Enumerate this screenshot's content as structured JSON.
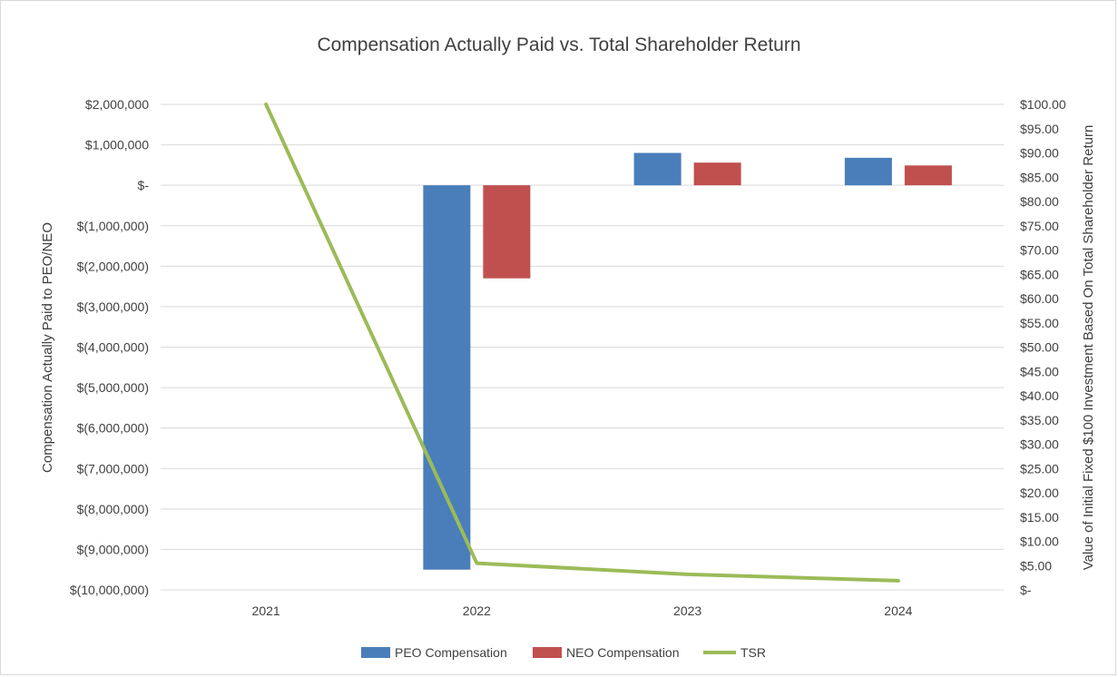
{
  "chart_data": {
    "type": "bar+line",
    "title": "Compensation Actually Paid vs. Total Shareholder Return",
    "categories": [
      "2021",
      "2022",
      "2023",
      "2024"
    ],
    "y_left": {
      "label": "Compensation Actually Paid to PEO/NEO",
      "range": [
        -10000000,
        2000000
      ],
      "ticks": [
        "$2,000,000",
        "$1,000,000",
        "$-",
        "$(1,000,000)",
        "$(2,000,000)",
        "$(3,000,000)",
        "$(4,000,000)",
        "$(5,000,000)",
        "$(6,000,000)",
        "$(7,000,000)",
        "$(8,000,000)",
        "$(9,000,000)",
        "$(10,000,000)"
      ]
    },
    "y_right": {
      "label": "Value of Initial Fixed $100 Investment Based On Total Shareholder Return",
      "range": [
        0,
        100
      ],
      "ticks": [
        "$100.00",
        "$95.00",
        "$90.00",
        "$85.00",
        "$80.00",
        "$75.00",
        "$70.00",
        "$65.00",
        "$60.00",
        "$55.00",
        "$50.00",
        "$45.00",
        "$40.00",
        "$35.00",
        "$30.00",
        "$25.00",
        "$20.00",
        "$15.00",
        "$10.00",
        "$5.00",
        "$-"
      ]
    },
    "series": [
      {
        "name": "PEO Compensation",
        "type": "bar",
        "axis": "left",
        "color": "#4a7ebb",
        "values": [
          0,
          -9500000,
          800000,
          680000
        ]
      },
      {
        "name": "NEO Compensation",
        "type": "bar",
        "axis": "left",
        "color": "#c0504d",
        "values": [
          0,
          -2300000,
          560000,
          490000
        ]
      },
      {
        "name": "TSR",
        "type": "line",
        "axis": "right",
        "color": "#9bbb59",
        "values": [
          100,
          5.5,
          3.2,
          1.9
        ]
      }
    ],
    "legend": "bottom",
    "grid": true
  }
}
